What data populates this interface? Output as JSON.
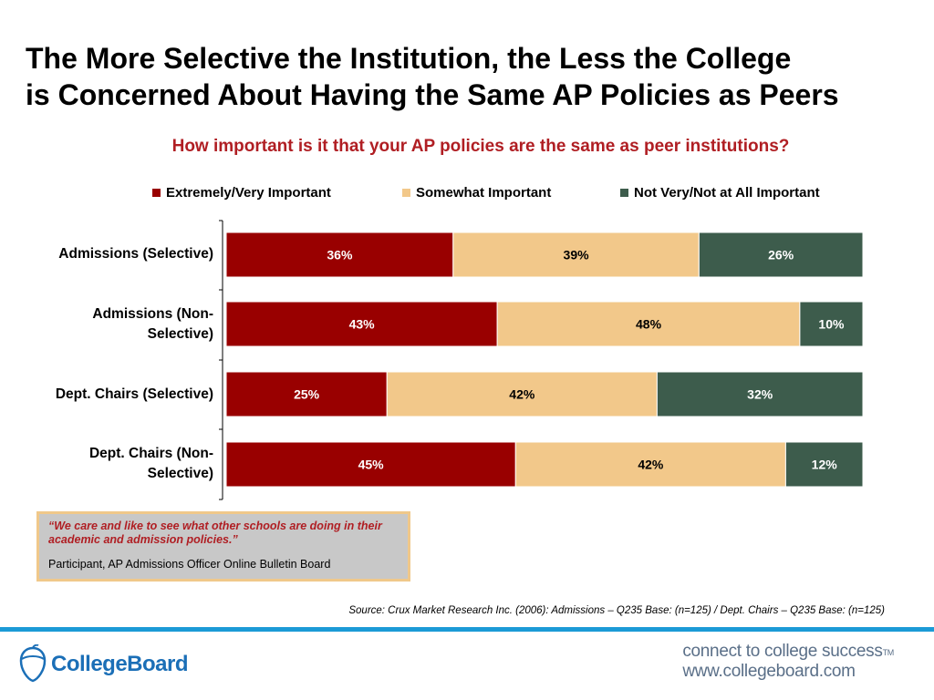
{
  "title_line1": "The More Selective the Institution, the Less the College",
  "title_line2": "is Concerned About Having the Same AP Policies as Peers",
  "chart_data": {
    "type": "bar",
    "orientation": "horizontal",
    "stacked": true,
    "title": "How important is it that your AP policies are the same as peer institutions?",
    "categories": [
      "Admissions (Selective)",
      "Admissions (Non-Selective)",
      "Dept. Chairs (Selective)",
      "Dept. Chairs (Non-Selective)"
    ],
    "series": [
      {
        "name": "Extremely/Very Important",
        "color": "#990000",
        "values": [
          36,
          43,
          25,
          45
        ]
      },
      {
        "name": "Somewhat Important",
        "color": "#f2c88a",
        "values": [
          39,
          48,
          42,
          42
        ]
      },
      {
        "name": "Not Very/Not at All Important",
        "color": "#3d5c4c",
        "values": [
          26,
          10,
          32,
          12
        ]
      }
    ],
    "value_suffix": "%",
    "legend": "top",
    "grid": false
  },
  "quote": {
    "text": "“We care and like to see what other schools are doing in their academic and admission policies.”",
    "attribution": "Participant, AP Admissions Officer Online Bulletin Board"
  },
  "source": "Source: Crux Market Research Inc. (2006): Admissions – Q235 Base: (n=125) / Dept. Chairs – Q235 Base: (n=125)",
  "footer": {
    "logo_text": "CollegeBoard",
    "logo_icon": "acorn-icon",
    "tagline_line1": "connect to college success",
    "tagline_tm": "TM",
    "tagline_line2": "www.collegeboard.com"
  },
  "colors": {
    "title": "#000000",
    "subtitle": "#b01e23",
    "footer_line": "#1b9ad6",
    "brand_blue": "#1b6fb7"
  }
}
